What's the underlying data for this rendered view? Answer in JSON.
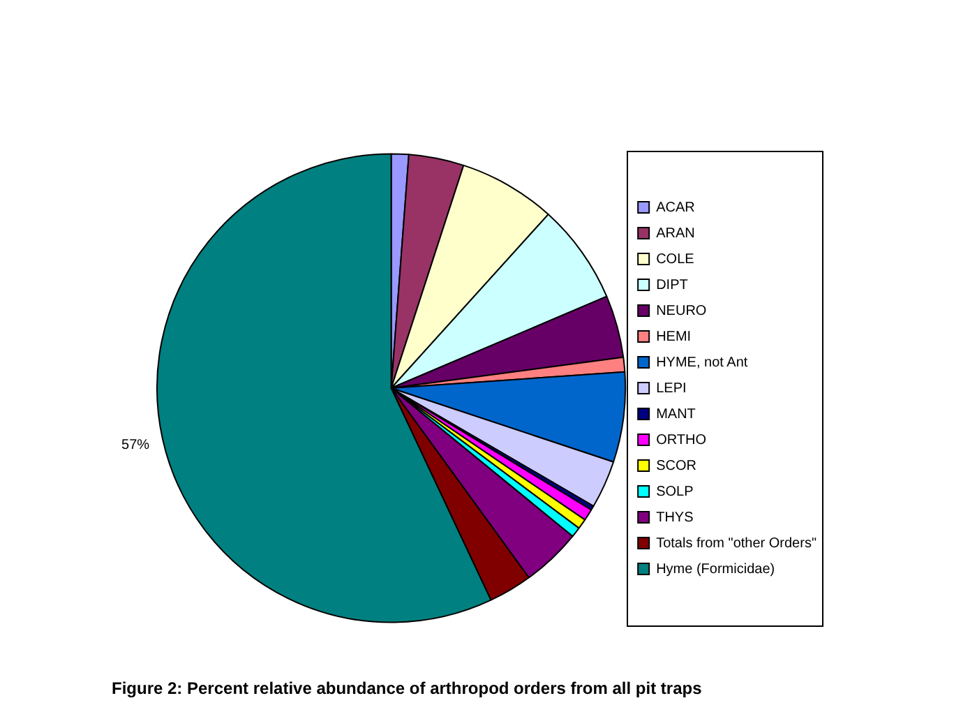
{
  "chart_data": {
    "type": "pie",
    "title": "Figure 2: Percent relative abundance of arthropod orders from all pit traps",
    "categories": [
      "ACAR",
      "ARAN",
      "COLE",
      "DIPT",
      "NEURO",
      "HEMI",
      "HYME, not Ant",
      "LEPI",
      "MANT",
      "ORTHO",
      "SCOR",
      "SOLP",
      "THYS",
      "Totals from \"other Orders\"",
      "Hyme (Formicidae)"
    ],
    "values": [
      1.2,
      3.8,
      6.7,
      6.9,
      4.3,
      1.0,
      6.2,
      3.3,
      0.3,
      0.8,
      0.7,
      0.7,
      4.1,
      3.0,
      57
    ],
    "colors": [
      "#9999ff",
      "#993366",
      "#ffffcc",
      "#ccffff",
      "#660066",
      "#ff8080",
      "#0066cc",
      "#ccccff",
      "#000080",
      "#ff00ff",
      "#ffff00",
      "#00ffff",
      "#800080",
      "#800000",
      "#008080"
    ],
    "value_labels": [
      null,
      null,
      null,
      null,
      null,
      null,
      null,
      null,
      null,
      null,
      null,
      null,
      null,
      null,
      "57%"
    ],
    "legend": "right"
  }
}
